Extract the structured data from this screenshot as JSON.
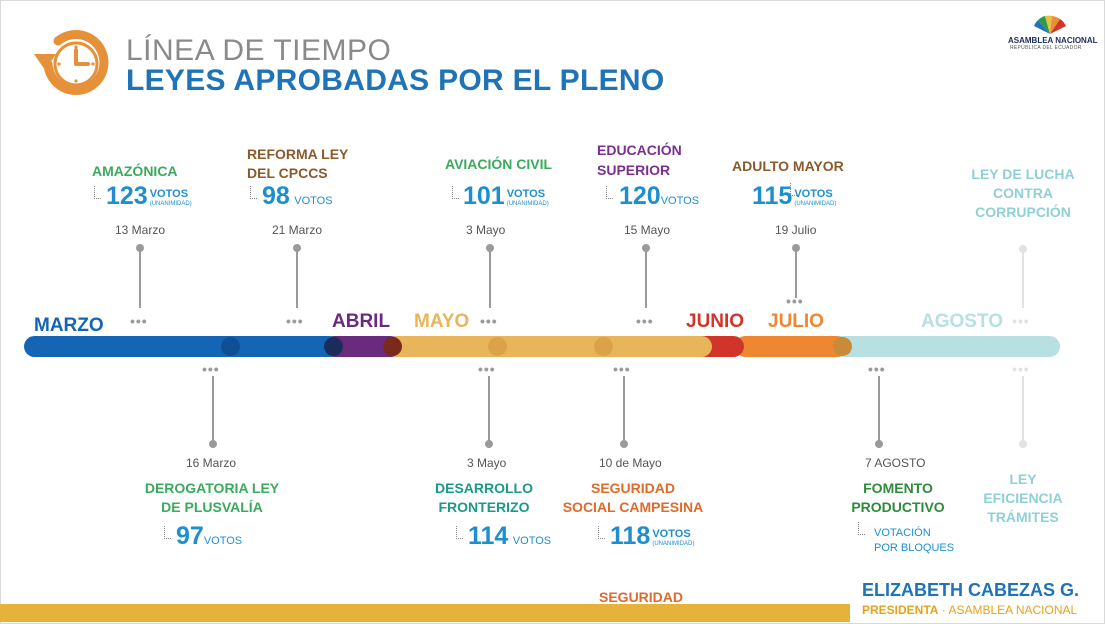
{
  "header": {
    "line1": "LÍNEA DE TIEMPO",
    "line2": "LEYES APROBADAS POR EL PLENO",
    "logo_text": "ASAMBLEA NACIONAL",
    "logo_sub": "REPÚBLICA DEL ECUADOR"
  },
  "months": {
    "marzo": "MARZO",
    "abril": "ABRIL",
    "mayo": "MAYO",
    "junio": "JUNIO",
    "julio": "JULIO",
    "agosto": "AGOSTO"
  },
  "colors": {
    "marzo": "#1565b6",
    "abril": "#6a2a7e",
    "mayo": "#e8b55a",
    "junio": "#d1352a",
    "julio": "#ef8632",
    "agosto": "#b7e0e0",
    "title": "#1f73b7",
    "votes": "#1e8fce",
    "bottom_bar": "#e7b23a"
  },
  "laws_top": [
    {
      "l1": "AMAZÓNICA",
      "date": "13 Marzo",
      "votes": "123",
      "word": "VOTOS",
      "unan": "(UNANIMIDAD)",
      "color": "#3aaa5c"
    },
    {
      "l1": "REFORMA LEY",
      "l2": "DEL CPCCS",
      "date": "21 Marzo",
      "votes": "98",
      "word": "VOTOS",
      "color": "#8a5a2b"
    },
    {
      "l1": "AVIACIÓN CIVIL",
      "date": "3 Mayo",
      "votes": "101",
      "word": "VOTOS",
      "unan": "(UNANIMIDAD)",
      "color": "#3aaa5c"
    },
    {
      "l1": "EDUCACIÓN",
      "l2": "SUPERIOR",
      "date": "15 Mayo",
      "votes": "120",
      "word": "VOTOS",
      "color": "#7b2f8f"
    },
    {
      "l1": "ADULTO MAYOR",
      "date": "19 Julio",
      "votes": "115",
      "word": "VOTOS",
      "unan": "(UNANIMIDAD)",
      "color": "#8a5a2b"
    },
    {
      "l1": "LEY DE LUCHA",
      "l2": "CONTRA",
      "l3": "CORRUPCIÓN",
      "color": "#8fd0d6"
    }
  ],
  "laws_bottom": [
    {
      "l1": "DEROGATORIA LEY",
      "l2": "DE PLUSVALÍA",
      "date": "16 Marzo",
      "votes": "97",
      "word": "VOTOS",
      "color": "#3aaa5c"
    },
    {
      "l1": "DESARROLLO",
      "l2": "FRONTERIZO",
      "date": "3 Mayo",
      "votes": "114",
      "word": "VOTOS",
      "color": "#1a9a8a"
    },
    {
      "l1": "SEGURIDAD",
      "l2": "SOCIAL CAMPESINA",
      "date": "10 de Mayo",
      "votes": "118",
      "word": "VOTOS",
      "unan": "(UNANIMIDAD)",
      "color": "#e06a2a"
    },
    {
      "l1": "FOMENTO",
      "l2": "PRODUCTIVO",
      "date": "7 AGOSTO",
      "note1": "VOTACIÓN",
      "note2": "POR BLOQUES",
      "color": "#2e8b3a"
    },
    {
      "l1": "LEY",
      "l2": "EFICIENCIA",
      "l3": "TRÁMITES",
      "color": "#8fd0d6"
    }
  ],
  "footer": {
    "partial": "SEGURIDAD",
    "name": "ELIZABETH CABEZAS G.",
    "role": "PRESIDENTA",
    "sep": " · ",
    "org": "ASAMBLEA NACIONAL"
  }
}
